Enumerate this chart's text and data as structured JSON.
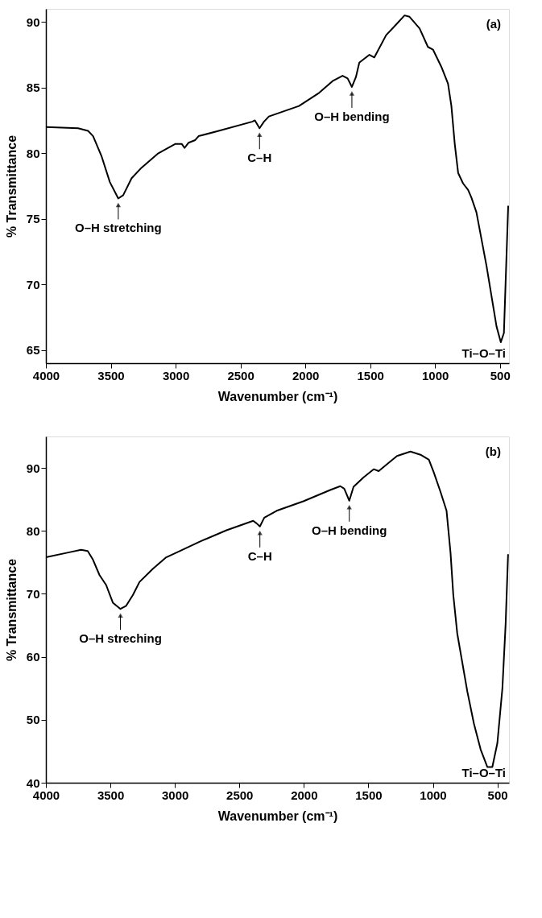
{
  "chart_data": [
    {
      "type": "line",
      "xlabel": "Wavenumber (cm⁻¹)",
      "ylabel": "% Transmittance",
      "xlim": [
        4000,
        430
      ],
      "ylim": [
        64,
        91
      ],
      "xticks": [
        4000,
        3500,
        3000,
        2500,
        2000,
        1500,
        1000,
        500
      ],
      "yticks": [
        65,
        70,
        75,
        80,
        85,
        90
      ],
      "grid": false,
      "marker": "none",
      "line_style": "solid",
      "annotations": [
        "(a)",
        "Ti–O–Ti",
        {
          "text": "O–H stretching",
          "x": 3442,
          "y": 76.55
        },
        {
          "text": "C–H",
          "x": 2353,
          "y": 81.9
        },
        {
          "text": "O–H bending",
          "x": 1641,
          "y": 85.05
        }
      ],
      "series": [
        {
          "color": "#000000",
          "x": [
            4000,
            3752,
            3675,
            3636,
            3572,
            3507,
            3442,
            3404,
            3339,
            3262,
            3133,
            3004,
            2952,
            2931,
            2900,
            2849,
            2823,
            2668,
            2410,
            2389,
            2353,
            2319,
            2281,
            2049,
            1894,
            1790,
            1713,
            1674,
            1641,
            1610,
            1584,
            1506,
            1468,
            1377,
            1300,
            1235,
            1197,
            1119,
            1055,
            1016,
            952,
            900,
            874,
            848,
            822,
            784,
            745,
            719,
            681,
            603,
            526,
            493,
            469,
            436
          ],
          "values": [
            82.0,
            81.9,
            81.7,
            81.3,
            79.8,
            77.8,
            76.55,
            76.8,
            78.1,
            78.9,
            80.0,
            80.7,
            80.7,
            80.4,
            80.8,
            81.0,
            81.3,
            81.7,
            82.4,
            82.5,
            81.9,
            82.4,
            82.8,
            83.6,
            84.6,
            85.5,
            85.9,
            85.7,
            85.05,
            85.8,
            86.9,
            87.5,
            87.3,
            89.0,
            89.8,
            90.5,
            90.4,
            89.5,
            88.1,
            87.9,
            86.6,
            85.3,
            83.6,
            80.7,
            78.5,
            77.7,
            77.2,
            76.6,
            75.5,
            71.4,
            66.8,
            65.6,
            66.3,
            76.0
          ]
        }
      ]
    },
    {
      "type": "line",
      "xlabel": "Wavenumber (cm⁻¹)",
      "ylabel": "% Transmittance",
      "xlim": [
        4000,
        410
      ],
      "ylim": [
        40,
        95
      ],
      "xticks": [
        4000,
        3500,
        3000,
        2500,
        2000,
        1500,
        1000,
        500
      ],
      "yticks": [
        40,
        50,
        60,
        70,
        80,
        90
      ],
      "grid": false,
      "marker": "none",
      "line_style": "solid",
      "annotations": [
        "(b)",
        "Ti–O–Ti",
        {
          "text": "O–H streching",
          "x": 3422,
          "y": 67.6
        },
        {
          "text": "C–H",
          "x": 2341,
          "y": 80.7
        },
        {
          "text": "O–H bending",
          "x": 1648,
          "y": 84.8
        }
      ],
      "series": [
        {
          "color": "#000000",
          "x": [
            4000,
            3819,
            3728,
            3676,
            3637,
            3585,
            3533,
            3481,
            3422,
            3378,
            3326,
            3274,
            3170,
            3067,
            2963,
            2807,
            2600,
            2393,
            2367,
            2341,
            2307,
            2211,
            2004,
            1796,
            1718,
            1687,
            1648,
            1615,
            1537,
            1459,
            1420,
            1356,
            1278,
            1174,
            1096,
            1031,
            993,
            941,
            894,
            863,
            842,
            811,
            733,
            682,
            630,
            578,
            539,
            500,
            461,
            436,
            417
          ],
          "values": [
            75.8,
            76.6,
            77.0,
            76.8,
            75.5,
            73.0,
            71.4,
            68.6,
            67.6,
            68.1,
            69.8,
            71.9,
            74.0,
            75.8,
            76.8,
            78.3,
            80.1,
            81.6,
            81.2,
            80.7,
            82.1,
            83.2,
            84.7,
            86.5,
            87.1,
            86.7,
            84.8,
            87.0,
            88.5,
            89.8,
            89.5,
            90.6,
            91.9,
            92.6,
            92.1,
            91.3,
            89.3,
            86.2,
            83.2,
            76.5,
            69.9,
            63.7,
            54.5,
            49.4,
            45.3,
            42.5,
            42.5,
            46.3,
            55.0,
            65.2,
            76.3
          ]
        }
      ]
    }
  ]
}
